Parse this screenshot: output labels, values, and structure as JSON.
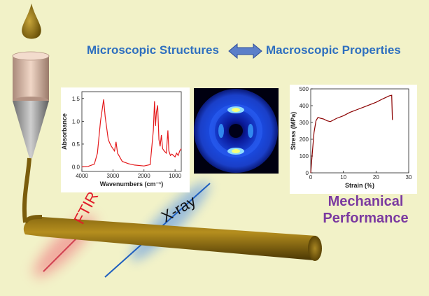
{
  "headline": {
    "left": "Microscopic Structures",
    "right": "Macroscopic Properties"
  },
  "performance_label": [
    "Mechanical",
    "Performance"
  ],
  "beams": {
    "ftir": "FTIR",
    "xray": "X-ray"
  },
  "colors": {
    "background": "#f2f2c8",
    "headline": "#2e6fbf",
    "performance": "#7b3aa0",
    "fiber": "#6b5208",
    "spectrum": "#e41a1c",
    "stress": "#8b0000"
  },
  "chart_data": [
    {
      "type": "line",
      "xlabel": "Wavenumbers (cm⁻¹)",
      "ylabel": "Absorbance",
      "xlim": [
        4000,
        800
      ],
      "ylim": [
        -0.1,
        1.65
      ],
      "xticks": [
        "4000",
        "3000",
        "2000",
        "1000"
      ],
      "yticks": [
        "0.0",
        "0.5",
        "1.0",
        "1.5"
      ],
      "series": [
        {
          "values": [
            [
              4000,
              0.0
            ],
            [
              3800,
              0.01
            ],
            [
              3600,
              0.06
            ],
            [
              3500,
              0.3
            ],
            [
              3400,
              1.0
            ],
            [
              3300,
              1.48
            ],
            [
              3250,
              1.1
            ],
            [
              3150,
              0.6
            ],
            [
              3100,
              0.52
            ],
            [
              3050,
              0.45
            ],
            [
              2950,
              0.35
            ],
            [
              2900,
              0.55
            ],
            [
              2850,
              0.3
            ],
            [
              2700,
              0.12
            ],
            [
              2500,
              0.07
            ],
            [
              2300,
              0.04
            ],
            [
              2000,
              0.02
            ],
            [
              1800,
              0.05
            ],
            [
              1700,
              0.8
            ],
            [
              1660,
              1.44
            ],
            [
              1630,
              0.9
            ],
            [
              1600,
              1.2
            ],
            [
              1560,
              1.35
            ],
            [
              1520,
              0.6
            ],
            [
              1480,
              0.45
            ],
            [
              1440,
              0.7
            ],
            [
              1400,
              0.4
            ],
            [
              1350,
              0.35
            ],
            [
              1280,
              0.3
            ],
            [
              1230,
              0.8
            ],
            [
              1200,
              0.35
            ],
            [
              1150,
              0.25
            ],
            [
              1100,
              0.28
            ],
            [
              1000,
              0.22
            ],
            [
              950,
              0.3
            ],
            [
              900,
              0.25
            ],
            [
              850,
              0.35
            ],
            [
              800,
              0.4
            ]
          ]
        }
      ]
    },
    {
      "type": "line",
      "xlabel": "Strain (%)",
      "ylabel": "Stress (MPa)",
      "xlim": [
        0,
        30
      ],
      "ylim": [
        0,
        500
      ],
      "xticks": [
        "0",
        "10",
        "20",
        "30"
      ],
      "yticks": [
        "0",
        "100",
        "200",
        "300",
        "400",
        "500"
      ],
      "series": [
        {
          "values": [
            [
              0,
              0
            ],
            [
              0.5,
              120
            ],
            [
              1.0,
              240
            ],
            [
              1.6,
              310
            ],
            [
              2.2,
              330
            ],
            [
              3.0,
              325
            ],
            [
              4.0,
              320
            ],
            [
              5.0,
              310
            ],
            [
              6.0,
              305
            ],
            [
              7.0,
              315
            ],
            [
              8.0,
              325
            ],
            [
              10.0,
              340
            ],
            [
              12.0,
              360
            ],
            [
              14.0,
              375
            ],
            [
              16.0,
              390
            ],
            [
              18.0,
              405
            ],
            [
              20.0,
              420
            ],
            [
              22.0,
              440
            ],
            [
              24.0,
              458
            ],
            [
              24.8,
              462
            ],
            [
              25.0,
              315
            ]
          ]
        }
      ]
    }
  ]
}
